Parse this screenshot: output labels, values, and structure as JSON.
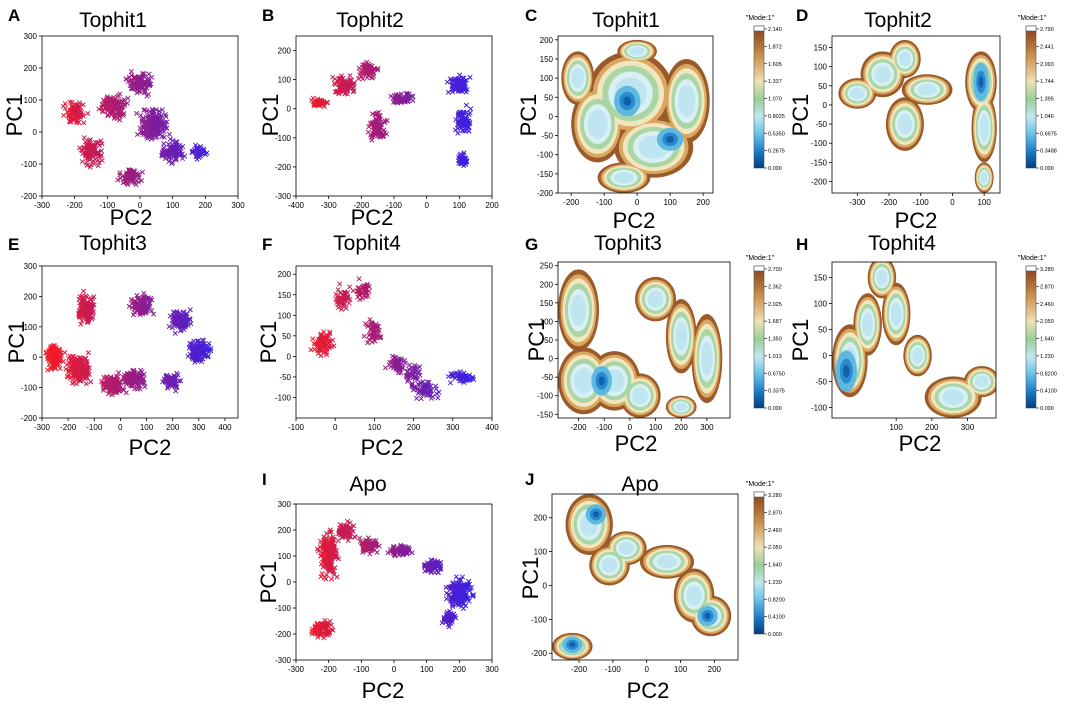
{
  "panel_letters": [
    "A",
    "B",
    "C",
    "D",
    "E",
    "F",
    "G",
    "H",
    "I",
    "J"
  ],
  "colorbar_header": "\"Mode:1\"",
  "chart_data": [
    {
      "id": "A",
      "type": "scatter",
      "title": "Tophit1",
      "xlabel": "PC2",
      "ylabel": "PC1",
      "xlim": [
        -300,
        300
      ],
      "ylim": [
        -200,
        300
      ],
      "xticks": [
        -300,
        -200,
        -100,
        0,
        100,
        200,
        300
      ],
      "yticks": [
        -200,
        -100,
        0,
        100,
        200,
        300
      ],
      "color_gradient": [
        "#ff1a1a",
        "#2020ff"
      ],
      "series": [
        {
          "name": "trajectory",
          "blobs": [
            [
              -200,
              60,
              60,
              60
            ],
            [
              -150,
              -60,
              60,
              70
            ],
            [
              -80,
              80,
              70,
              70
            ],
            [
              0,
              150,
              70,
              60
            ],
            [
              40,
              20,
              80,
              90
            ],
            [
              100,
              -60,
              60,
              60
            ],
            [
              180,
              -60,
              40,
              40
            ],
            [
              -30,
              -140,
              60,
              50
            ]
          ]
        }
      ]
    },
    {
      "id": "B",
      "type": "scatter",
      "title": "Tophit2",
      "xlabel": "PC2",
      "ylabel": "PC1",
      "xlim": [
        -400,
        200
      ],
      "ylim": [
        -300,
        250
      ],
      "xticks": [
        -400,
        -300,
        -200,
        -100,
        0,
        100,
        200
      ],
      "yticks": [
        -300,
        -200,
        -100,
        0,
        100,
        200
      ],
      "color_gradient": [
        "#ff1a1a",
        "#2020ff"
      ],
      "series": [
        {
          "name": "trajectory",
          "blobs": [
            [
              -330,
              20,
              50,
              30
            ],
            [
              -250,
              80,
              60,
              60
            ],
            [
              -180,
              130,
              50,
              50
            ],
            [
              -150,
              -60,
              50,
              80
            ],
            [
              -80,
              40,
              60,
              40
            ],
            [
              100,
              80,
              60,
              60
            ],
            [
              110,
              -40,
              40,
              80
            ],
            [
              110,
              -180,
              30,
              50
            ]
          ]
        }
      ]
    },
    {
      "id": "C",
      "type": "heatmap",
      "title": "Tophit1",
      "xlabel": "PC2",
      "ylabel": "PC1",
      "xlim": [
        -240,
        230
      ],
      "ylim": [
        -200,
        210
      ],
      "xticks": [
        -200,
        -100,
        0,
        100,
        200
      ],
      "yticks": [
        -200,
        -150,
        -100,
        -50,
        0,
        50,
        100,
        150,
        200
      ],
      "colorbar": {
        "max": 2.14,
        "ticks": [
          "2.140",
          "1.872",
          "1.605",
          "1.337",
          "1.070",
          "0.8025",
          "0.5350",
          "0.2675",
          "0.000"
        ]
      },
      "blobs": [
        [
          -180,
          100,
          50,
          70
        ],
        [
          -120,
          -20,
          80,
          100
        ],
        [
          -20,
          60,
          130,
          110
        ],
        [
          50,
          -80,
          120,
          80
        ],
        [
          150,
          40,
          70,
          110
        ],
        [
          -40,
          -160,
          80,
          40
        ],
        [
          0,
          170,
          60,
          30
        ]
      ],
      "wells": [
        [
          -30,
          40,
          40,
          40
        ],
        [
          100,
          -60,
          40,
          30
        ]
      ]
    },
    {
      "id": "D",
      "type": "heatmap",
      "title": "Tophit2",
      "xlabel": "PC2",
      "ylabel": "PC1",
      "xlim": [
        -380,
        150
      ],
      "ylim": [
        -230,
        180
      ],
      "xticks": [
        -300,
        -200,
        -100,
        0,
        100
      ],
      "yticks": [
        -200,
        -150,
        -100,
        -50,
        0,
        50,
        100,
        150
      ],
      "colorbar": {
        "max": 2.79,
        "ticks": [
          "2.790",
          "2.441",
          "2.093",
          "1.744",
          "1.395",
          "1.046",
          "0.6975",
          "0.3488",
          "0.000"
        ]
      },
      "blobs": [
        [
          -300,
          30,
          60,
          40
        ],
        [
          -220,
          80,
          70,
          60
        ],
        [
          -150,
          120,
          50,
          50
        ],
        [
          -150,
          -50,
          60,
          70
        ],
        [
          -80,
          40,
          80,
          40
        ],
        [
          90,
          60,
          50,
          80
        ],
        [
          100,
          -60,
          40,
          90
        ],
        [
          100,
          -190,
          30,
          40
        ]
      ],
      "wells": [
        [
          90,
          60,
          25,
          50
        ]
      ]
    },
    {
      "id": "E",
      "type": "scatter",
      "title": "Tophit3",
      "xlabel": "PC2",
      "ylabel": "PC1",
      "xlim": [
        -300,
        450
      ],
      "ylim": [
        -200,
        300
      ],
      "xticks": [
        -300,
        -200,
        -100,
        0,
        100,
        200,
        300,
        400
      ],
      "yticks": [
        -200,
        -100,
        0,
        100,
        200,
        300
      ],
      "color_gradient": [
        "#ff1a1a",
        "#2020ff"
      ],
      "series": [
        {
          "name": "trajectory",
          "blobs": [
            [
              -250,
              0,
              60,
              70
            ],
            [
              -160,
              -40,
              80,
              90
            ],
            [
              -130,
              160,
              60,
              90
            ],
            [
              -30,
              -90,
              80,
              60
            ],
            [
              50,
              -70,
              80,
              60
            ],
            [
              80,
              170,
              70,
              60
            ],
            [
              230,
              120,
              70,
              60
            ],
            [
              300,
              20,
              70,
              70
            ],
            [
              200,
              -80,
              60,
              50
            ]
          ]
        }
      ]
    },
    {
      "id": "F",
      "type": "scatter",
      "title": "Tophit4",
      "xlabel": "PC2",
      "ylabel": "PC1",
      "xlim": [
        -100,
        400
      ],
      "ylim": [
        -150,
        220
      ],
      "xticks": [
        -100,
        0,
        100,
        200,
        300,
        400
      ],
      "yticks": [
        -100,
        -50,
        0,
        50,
        100,
        150,
        200
      ],
      "color_gradient": [
        "#ff1a1a",
        "#2020ff"
      ],
      "series": [
        {
          "name": "trajectory",
          "blobs": [
            [
              -30,
              30,
              50,
              60
            ],
            [
              20,
              140,
              40,
              50
            ],
            [
              70,
              160,
              40,
              40
            ],
            [
              100,
              60,
              40,
              50
            ],
            [
              160,
              -20,
              50,
              40
            ],
            [
              230,
              -80,
              60,
              40
            ],
            [
              320,
              -50,
              60,
              30
            ],
            [
              200,
              -40,
              40,
              40
            ]
          ]
        }
      ]
    },
    {
      "id": "G",
      "type": "heatmap",
      "title": "Tophit3",
      "xlabel": "PC2",
      "ylabel": "PC1",
      "xlim": [
        -280,
        390
      ],
      "ylim": [
        -160,
        260
      ],
      "xticks": [
        -200,
        -100,
        0,
        100,
        200,
        300
      ],
      "yticks": [
        -150,
        -100,
        -50,
        0,
        50,
        100,
        150,
        200,
        250
      ],
      "colorbar": {
        "max": 2.7,
        "ticks": [
          "2.700",
          "2.362",
          "2.025",
          "1.687",
          "1.350",
          "1.013",
          "0.6750",
          "0.3375",
          "0.000"
        ]
      },
      "blobs": [
        [
          -200,
          130,
          80,
          110
        ],
        [
          -180,
          -60,
          100,
          90
        ],
        [
          -60,
          -60,
          100,
          80
        ],
        [
          40,
          -100,
          80,
          60
        ],
        [
          100,
          160,
          80,
          60
        ],
        [
          200,
          60,
          60,
          100
        ],
        [
          300,
          0,
          60,
          120
        ],
        [
          200,
          -130,
          60,
          30
        ]
      ],
      "wells": [
        [
          -110,
          -60,
          40,
          40
        ]
      ]
    },
    {
      "id": "H",
      "type": "heatmap",
      "title": "Tophit4",
      "xlabel": "PC2",
      "ylabel": "PC1",
      "xlim": [
        -80,
        380
      ],
      "ylim": [
        -120,
        180
      ],
      "xticks": [
        100,
        200,
        300
      ],
      "yticks": [
        -100,
        -50,
        0,
        50,
        100,
        150
      ],
      "colorbar": {
        "max": 3.28,
        "ticks": [
          "3.280",
          "2.870",
          "2.460",
          "2.050",
          "1.640",
          "1.230",
          "0.8200",
          "0.4100",
          "0.000"
        ]
      },
      "blobs": [
        [
          -30,
          -10,
          50,
          70
        ],
        [
          20,
          60,
          40,
          60
        ],
        [
          60,
          150,
          40,
          40
        ],
        [
          100,
          80,
          40,
          60
        ],
        [
          160,
          0,
          40,
          40
        ],
        [
          260,
          -80,
          80,
          40
        ],
        [
          340,
          -50,
          50,
          30
        ]
      ],
      "wells": [
        [
          -40,
          -30,
          30,
          40
        ]
      ]
    },
    {
      "id": "I",
      "type": "scatter",
      "title": "Apo",
      "xlabel": "PC2",
      "ylabel": "PC1",
      "xlim": [
        -300,
        300
      ],
      "ylim": [
        -300,
        300
      ],
      "xticks": [
        -300,
        -200,
        -100,
        0,
        100,
        200,
        300
      ],
      "yticks": [
        -300,
        -200,
        -100,
        0,
        100,
        200,
        300
      ],
      "color_gradient": [
        "#ff1a1a",
        "#2020ff"
      ],
      "series": [
        {
          "name": "trajectory",
          "blobs": [
            [
              -220,
              -180,
              60,
              60
            ],
            [
              -200,
              100,
              50,
              150
            ],
            [
              -150,
              200,
              50,
              60
            ],
            [
              -80,
              140,
              60,
              50
            ],
            [
              20,
              120,
              60,
              40
            ],
            [
              120,
              60,
              60,
              50
            ],
            [
              200,
              -40,
              70,
              100
            ],
            [
              170,
              -140,
              40,
              50
            ]
          ]
        }
      ]
    },
    {
      "id": "J",
      "type": "heatmap",
      "title": "Apo",
      "xlabel": "PC2",
      "ylabel": "PC1",
      "xlim": [
        -280,
        270
      ],
      "ylim": [
        -220,
        270
      ],
      "xticks": [
        -200,
        -100,
        0,
        100,
        200
      ],
      "yticks": [
        -200,
        -100,
        0,
        100,
        200
      ],
      "colorbar": {
        "max": 3.28,
        "ticks": [
          "3.280",
          "2.870",
          "2.460",
          "2.050",
          "1.640",
          "1.230",
          "0.8200",
          "0.4100",
          "0.000"
        ]
      },
      "blobs": [
        [
          -220,
          -180,
          60,
          40
        ],
        [
          -170,
          180,
          70,
          90
        ],
        [
          -110,
          60,
          60,
          60
        ],
        [
          -60,
          110,
          60,
          50
        ],
        [
          60,
          70,
          80,
          50
        ],
        [
          140,
          -30,
          60,
          80
        ],
        [
          190,
          -90,
          60,
          60
        ]
      ],
      "wells": [
        [
          -220,
          -175,
          30,
          25
        ],
        [
          180,
          -90,
          30,
          30
        ],
        [
          -150,
          210,
          30,
          30
        ]
      ]
    }
  ]
}
